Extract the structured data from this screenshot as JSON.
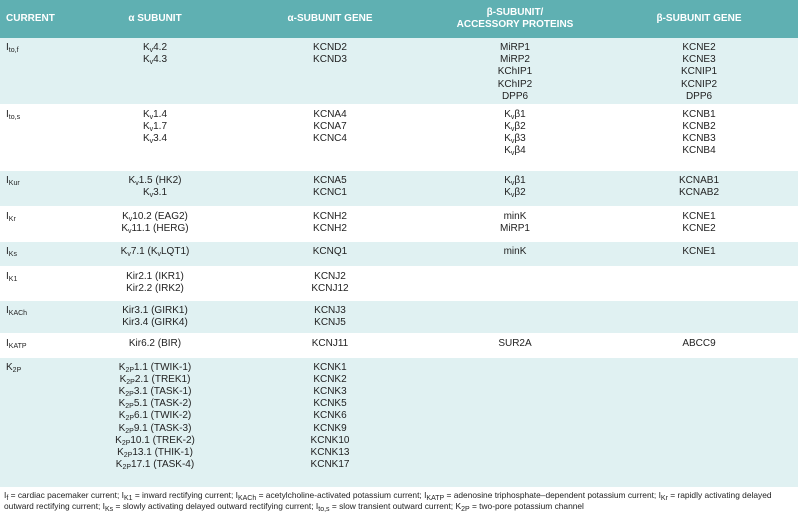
{
  "table": {
    "header": [
      [
        "CURRENT"
      ],
      [
        "α SUBUNIT"
      ],
      [
        "α-SUBUNIT GENE"
      ],
      [
        "β-SUBUNIT/",
        "ACCESSORY PROTEINS"
      ],
      [
        "β-SUBUNIT GENE"
      ]
    ],
    "rows": [
      [
        [
          [
            "I",
            {
              "sub": "to,f"
            }
          ]
        ],
        [
          [
            "K",
            {
              "sub": "v"
            },
            "4.2"
          ],
          [
            "K",
            {
              "sub": "v"
            },
            "4.3"
          ]
        ],
        [
          "KCND2",
          "KCND3"
        ],
        [
          "MiRP1",
          "MiRP2",
          "KChIP1",
          "KChIP2",
          "DPP6"
        ],
        [
          "KCNE2",
          "KCNE3",
          "KCNIP1",
          "KCNIP2",
          "DPP6"
        ]
      ],
      [
        [
          [
            "I",
            {
              "sub": "to,s"
            }
          ]
        ],
        [
          [
            "K",
            {
              "sub": "v"
            },
            "1.4"
          ],
          [
            "K",
            {
              "sub": "v"
            },
            "1.7"
          ],
          [
            "K",
            {
              "sub": "v"
            },
            "3.4"
          ]
        ],
        [
          "KCNA4",
          "KCNA7",
          "KCNC4"
        ],
        [
          [
            "K",
            {
              "sub": "v"
            },
            "β1"
          ],
          [
            "K",
            {
              "sub": "v"
            },
            "β2"
          ],
          [
            "K",
            {
              "sub": "v"
            },
            "β3"
          ],
          [
            "K",
            {
              "sub": "v"
            },
            "β4"
          ]
        ],
        [
          "KCNB1",
          "KCNB2",
          "KCNB3",
          "KCNB4"
        ]
      ],
      [
        [
          [
            "I",
            {
              "sub": "Kur"
            }
          ]
        ],
        [
          [
            "K",
            {
              "sub": "v"
            },
            "1.5 (HK2)"
          ],
          [
            "K",
            {
              "sub": "v"
            },
            "3.1"
          ]
        ],
        [
          "KCNA5",
          "KCNC1"
        ],
        [
          [
            "K",
            {
              "sub": "v"
            },
            "β1"
          ],
          [
            "K",
            {
              "sub": "v"
            },
            "β2"
          ]
        ],
        [
          "KCNAB1",
          "KCNAB2"
        ]
      ],
      [
        [
          [
            "I",
            {
              "sub": "Kr"
            }
          ]
        ],
        [
          [
            "K",
            {
              "sub": "v"
            },
            "10.2 (EAG2)"
          ],
          [
            "K",
            {
              "sub": "v"
            },
            "11.1 (HERG)"
          ]
        ],
        [
          "KCNH2",
          "KCNH2"
        ],
        [
          "minK",
          "MiRP1"
        ],
        [
          "KCNE1",
          "KCNE2"
        ]
      ],
      [
        [
          [
            "I",
            {
              "sub": "Ks"
            }
          ]
        ],
        [
          [
            "K",
            {
              "sub": "v"
            },
            "7.1 (K",
            {
              "sub": "v"
            },
            "LQT1)"
          ]
        ],
        [
          "KCNQ1"
        ],
        [
          "minK"
        ],
        [
          "KCNE1"
        ]
      ],
      [
        [
          [
            "I",
            {
              "sub": "K1"
            }
          ]
        ],
        [
          "Kir2.1 (IKR1)",
          "Kir2.2 (IRK2)"
        ],
        [
          "KCNJ2",
          "KCNJ12"
        ],
        [],
        []
      ],
      [
        [
          [
            "I",
            {
              "sub": "KACh"
            }
          ]
        ],
        [
          "Kir3.1 (GIRK1)",
          "Kir3.4 (GIRK4)"
        ],
        [
          "KCNJ3",
          "KCNJ5"
        ],
        [],
        []
      ],
      [
        [
          [
            "I",
            {
              "sub": "KATP"
            }
          ]
        ],
        [
          "Kir6.2 (BIR)"
        ],
        [
          "KCNJ11"
        ],
        [
          "SUR2A"
        ],
        [
          "ABCC9"
        ]
      ],
      [
        [
          [
            "K",
            {
              "sub": "2P"
            }
          ]
        ],
        [
          [
            "K",
            {
              "sub": "2P"
            },
            "1.1 (TWIK-1)"
          ],
          [
            "K",
            {
              "sub": "2P"
            },
            "2.1 (TREK1)"
          ],
          [
            "K",
            {
              "sub": "2P"
            },
            "3.1 (TASK-1)"
          ],
          [
            "K",
            {
              "sub": "2P"
            },
            "5.1 (TASK-2)"
          ],
          [
            "K",
            {
              "sub": "2P"
            },
            "6.1 (TWIK-2)"
          ],
          [
            "K",
            {
              "sub": "2P"
            },
            "9.1 (TASK-3)"
          ],
          [
            "K",
            {
              "sub": "2P"
            },
            "10.1 (TREK-2)"
          ],
          [
            "K",
            {
              "sub": "2P"
            },
            "13.1 (THIK-1)"
          ],
          [
            "K",
            {
              "sub": "2P"
            },
            "17.1 (TASK-4)"
          ]
        ],
        [
          "KCNK1",
          "KCNK2",
          "KCNK3",
          "KCNK5",
          "KCNK6",
          "KCNK9",
          "KCNK10",
          "KCNK13",
          "KCNK17"
        ],
        [],
        []
      ]
    ],
    "footnote": [
      "I",
      {
        "sub": "f"
      },
      " = cardiac pacemaker current; I",
      {
        "sub": "K1"
      },
      " = inward rectifying current; I",
      {
        "sub": "KACh"
      },
      " = acetylcholine-activated potassium current; I",
      {
        "sub": "KATP"
      },
      " = adenosine triphosphate–dependent potassium current; I",
      {
        "sub": "Kr"
      },
      " = rapidly activating delayed outward rectifying current; I",
      {
        "sub": "Ks"
      },
      " = slowly activating delayed outward rectifying current; I",
      {
        "sub": "to,s"
      },
      " = slow transient outward current; K",
      {
        "sub": "2P"
      },
      " = two-pore potassium channel"
    ]
  }
}
